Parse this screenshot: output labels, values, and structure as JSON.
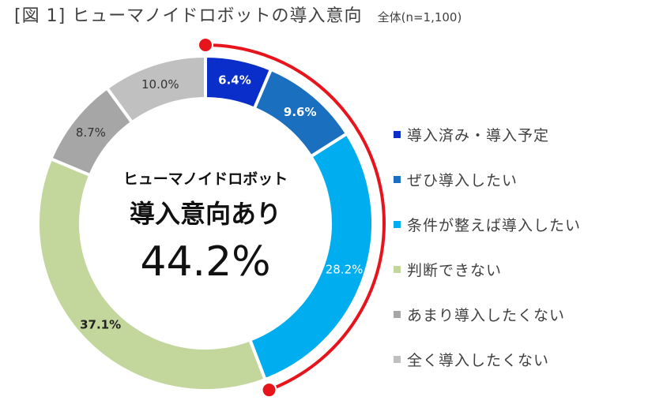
{
  "title": "[図 1] ヒューマノイドロボットの導入意向",
  "subtitle": "全体(n=1,100)",
  "center": {
    "line1": "ヒューマノイドロボット",
    "line2": "導入意向あり",
    "value": "44.2%"
  },
  "chart_data": {
    "type": "pie",
    "style": "donut",
    "categories": [
      "導入済み・導入予定",
      "ぜひ導入したい",
      "条件が整えば導入したい",
      "判断できない",
      "あまり導入したくない",
      "全く導入したくない"
    ],
    "values": [
      6.4,
      9.6,
      28.2,
      37.1,
      8.7,
      10.0
    ],
    "value_labels": [
      "6.4%",
      "9.6%",
      "28.2%",
      "37.1%",
      "8.7%",
      "10.0%"
    ],
    "colors": [
      "#0a2ec9",
      "#1a6fbf",
      "#00adee",
      "#c3d69b",
      "#a6a6a6",
      "#c0c0c0"
    ],
    "label_colors": [
      "#ffffff",
      "#ffffff",
      "#ffffff",
      "#222222",
      "#333333",
      "#333333"
    ],
    "label_bold": [
      true,
      true,
      false,
      true,
      false,
      false
    ],
    "highlight": {
      "from_category": 0,
      "to_category": 2,
      "total": 44.2,
      "color": "#e8141c"
    },
    "legend_position": "right"
  }
}
